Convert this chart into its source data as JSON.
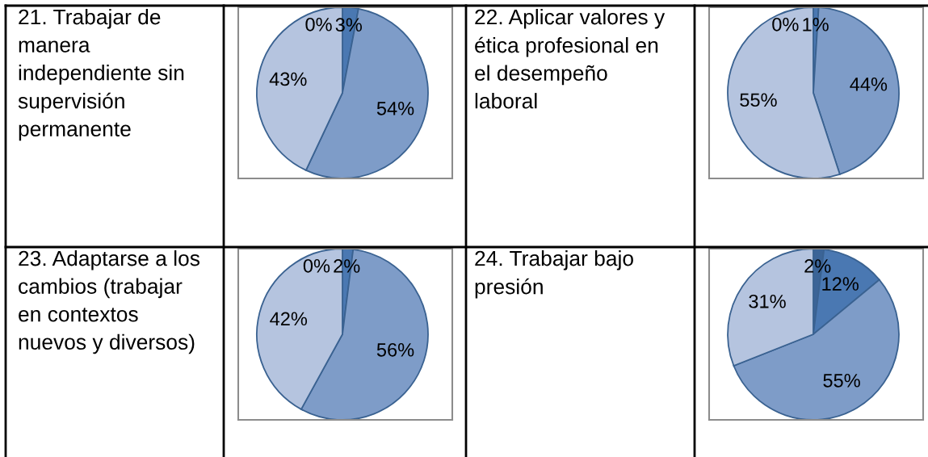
{
  "chart_data": [
    {
      "type": "pie",
      "title": "21. Trabajar de manera independiente sin supervisión permanente",
      "categories": [
        null,
        null,
        null,
        null
      ],
      "values": [
        0,
        3,
        54,
        43
      ],
      "colors": [
        "#3b6497",
        "#4a78b2",
        "#7e9cc8",
        "#b5c4df"
      ],
      "value_labels": [
        "0%",
        "3%",
        "54%",
        "43%"
      ]
    },
    {
      "type": "pie",
      "title": "22. Aplicar valores y ética profesional en el desempeño laboral",
      "categories": [
        null,
        null,
        null,
        null
      ],
      "values": [
        0,
        1,
        44,
        55
      ],
      "colors": [
        "#3b6497",
        "#4a78b2",
        "#7e9cc8",
        "#b5c4df"
      ],
      "value_labels": [
        "0%",
        "1%",
        "44%",
        "55%"
      ]
    },
    {
      "type": "pie",
      "title": "23. Adaptarse a los cambios (trabajar en contextos nuevos y diversos)",
      "categories": [
        null,
        null,
        null,
        null
      ],
      "values": [
        0,
        2,
        56,
        42
      ],
      "colors": [
        "#3b6497",
        "#4a78b2",
        "#7e9cc8",
        "#b5c4df"
      ],
      "value_labels": [
        "0%",
        "2%",
        "56%",
        "42%"
      ]
    },
    {
      "type": "pie",
      "title": "24. Trabajar bajo presión",
      "categories": [
        null,
        null,
        null,
        null
      ],
      "values": [
        2,
        12,
        55,
        31
      ],
      "colors": [
        "#3b6497",
        "#4a78b2",
        "#7e9cc8",
        "#b5c4df"
      ],
      "value_labels": [
        "2%",
        "12%",
        "55%",
        "31%"
      ]
    }
  ]
}
